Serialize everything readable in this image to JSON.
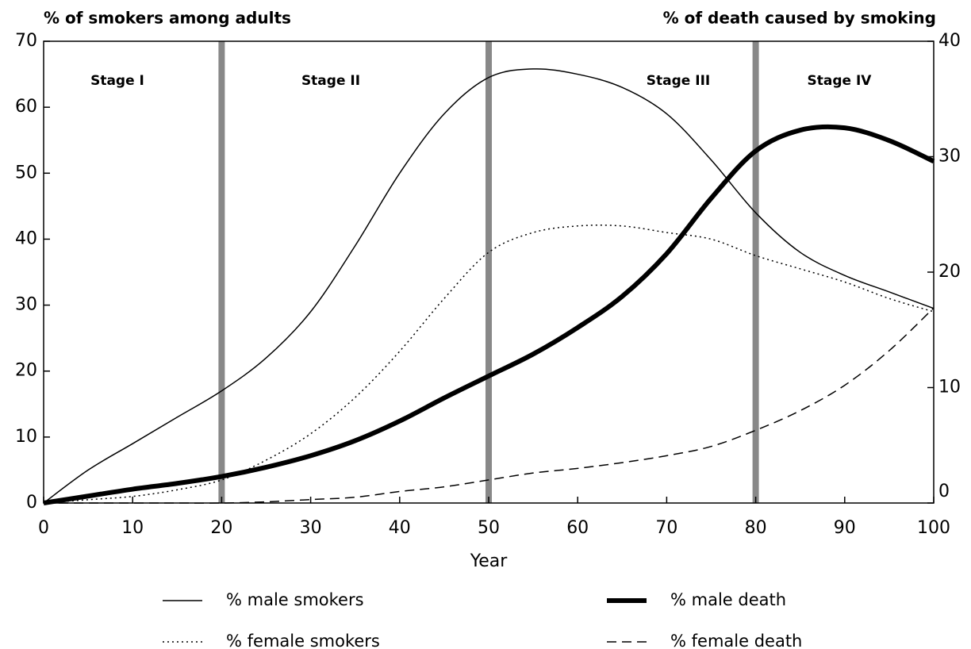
{
  "chart_data": {
    "type": "line",
    "ylabel": "% of smokers among adults",
    "y2label": "% of death caused by smoking",
    "xlabel": "Year",
    "x": [
      0,
      5,
      10,
      15,
      20,
      25,
      30,
      35,
      40,
      45,
      50,
      55,
      60,
      65,
      70,
      75,
      80,
      85,
      90,
      95,
      100
    ],
    "series": [
      {
        "name": "% male smokers",
        "color": "#000000",
        "style": "solid",
        "width": 1.5,
        "values": [
          0,
          5,
          9,
          13,
          17,
          22,
          29,
          39,
          50,
          59,
          64.5,
          65.8,
          65,
          63,
          59,
          52,
          44,
          38,
          34.5,
          32,
          29.5
        ]
      },
      {
        "name": "% male death",
        "color": "#000000",
        "style": "solid",
        "width": 6,
        "axis": "y2",
        "values": [
          0,
          0.6,
          1.2,
          1.7,
          2.3,
          3.1,
          4.1,
          5.4,
          7.1,
          9.1,
          11.0,
          12.9,
          15.2,
          17.9,
          21.6,
          26.4,
          30.5,
          32.3,
          32.5,
          31.4,
          29.6
        ]
      },
      {
        "name": "% female smokers",
        "color": "#000000",
        "style": "dotted",
        "width": 1.5,
        "values": [
          0,
          0.5,
          1,
          2,
          3.5,
          6.5,
          10.5,
          16,
          23,
          31,
          38,
          41,
          42,
          42,
          41,
          40,
          37.5,
          35.5,
          33.5,
          31,
          29
        ]
      },
      {
        "name": "% female death",
        "color": "#000000",
        "style": "dashed",
        "width": 1.5,
        "axis": "y2",
        "values": [
          0,
          0,
          0,
          0,
          0,
          0.1,
          0.3,
          0.5,
          1.0,
          1.4,
          2.0,
          2.6,
          3.0,
          3.5,
          4.1,
          4.9,
          6.3,
          8.0,
          10.2,
          13.2,
          16.9
        ]
      }
    ],
    "xlim": [
      0,
      100
    ],
    "xticks": [
      0,
      10,
      20,
      30,
      40,
      50,
      60,
      70,
      80,
      90,
      100
    ],
    "ylim": [
      0,
      70
    ],
    "yticks": [
      0,
      10,
      20,
      30,
      40,
      50,
      60,
      70
    ],
    "y2lim": [
      0,
      40
    ],
    "y2ticks": [
      0,
      10,
      20,
      30,
      40
    ],
    "vlines": [
      20,
      50,
      80
    ],
    "vline_color": "#888888",
    "annotations": [
      "Stage I",
      "Stage II",
      "Stage III",
      "Stage IV"
    ],
    "legend": "bottom"
  }
}
